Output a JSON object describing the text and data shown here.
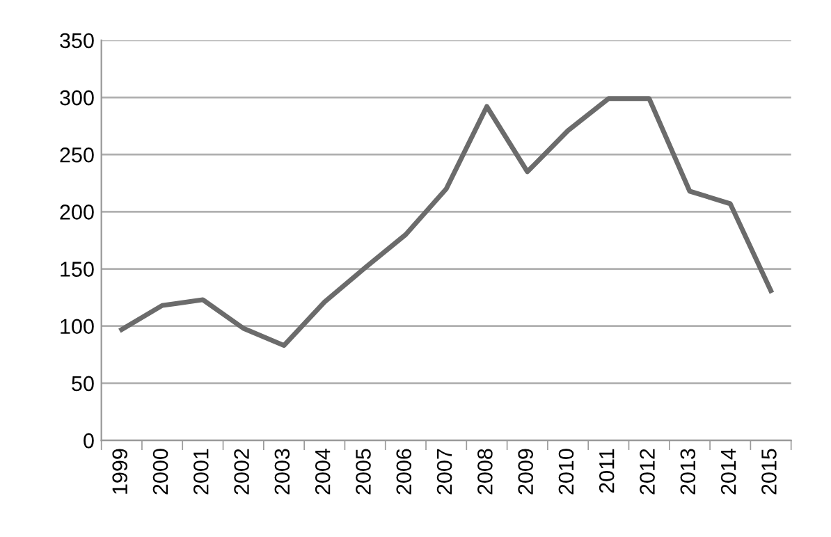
{
  "chart_data": {
    "type": "line",
    "categories": [
      "1999",
      "2000",
      "2001",
      "2002",
      "2003",
      "2004",
      "2005",
      "2006",
      "2007",
      "2008",
      "2009",
      "2010",
      "2011",
      "2012",
      "2013",
      "2014",
      "2015"
    ],
    "series": [
      {
        "color": "#6b6b6b",
        "values": [
          97,
          118,
          123,
          98,
          83,
          121,
          151,
          180,
          220,
          292,
          235,
          271,
          299,
          299,
          218,
          207,
          131
        ]
      }
    ],
    "ylim": [
      0,
      350
    ],
    "yticks": [
      0,
      50,
      100,
      150,
      200,
      250,
      300,
      350
    ],
    "grid": "y",
    "marker": "none",
    "line_style": "solid"
  }
}
